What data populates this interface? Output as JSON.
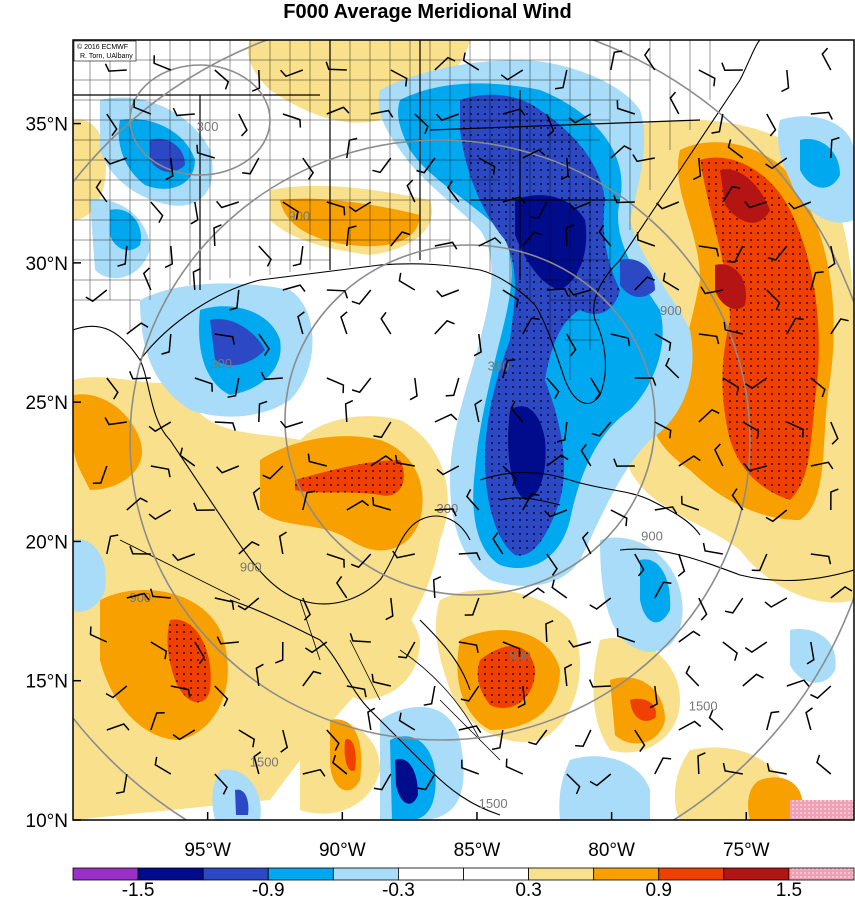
{
  "title": "F000 Average Meridional Wind",
  "credit_lines": [
    "© 2016 ECMWF",
    "R. Torn, UAlbany"
  ],
  "latitudes": [
    {
      "value": 35,
      "label": "35°N"
    },
    {
      "value": 30,
      "label": "30°N"
    },
    {
      "value": 25,
      "label": "25°N"
    },
    {
      "value": 20,
      "label": "20°N"
    },
    {
      "value": 15,
      "label": "15°N"
    },
    {
      "value": 10,
      "label": "10°N"
    }
  ],
  "longitudes": [
    {
      "value": -95,
      "label": "95°W"
    },
    {
      "value": -90,
      "label": "90°W"
    },
    {
      "value": -85,
      "label": "85°W"
    },
    {
      "value": -80,
      "label": "80°W"
    },
    {
      "value": -75,
      "label": "75°W"
    }
  ],
  "extent": {
    "lon_min": -100,
    "lon_max": -71,
    "lat_min": 10,
    "lat_max": 38
  },
  "contour_labels": [
    {
      "text": "300",
      "lon": -84.2,
      "lat": 26.2
    },
    {
      "text": "300",
      "lon": -86.1,
      "lat": 21.1
    },
    {
      "text": "300",
      "lon": -94.5,
      "lat": 26.3
    },
    {
      "text": "300",
      "lon": -95.0,
      "lat": 34.8
    },
    {
      "text": "900",
      "lon": -91.6,
      "lat": 31.6
    },
    {
      "text": "900",
      "lon": -77.8,
      "lat": 28.2
    },
    {
      "text": "900",
      "lon": -78.5,
      "lat": 20.1
    },
    {
      "text": "900",
      "lon": -93.4,
      "lat": 19.0
    },
    {
      "text": "900",
      "lon": -83.4,
      "lat": 15.8
    },
    {
      "text": "900",
      "lon": -97.5,
      "lat": 17.9
    },
    {
      "text": "1500",
      "lon": -76.6,
      "lat": 14.0
    },
    {
      "text": "1500",
      "lon": -92.9,
      "lat": 12.0
    },
    {
      "text": "1500",
      "lon": -84.4,
      "lat": 10.5
    }
  ],
  "colorbar": {
    "colors": [
      "#9b30c8",
      "#000c8c",
      "#2c48c4",
      "#00a8f0",
      "#a8dcf8",
      "#ffffff",
      "#ffffff",
      "#f8e08c",
      "#f8a000",
      "#f04000",
      "#b41414",
      "#f0a0b4"
    ],
    "labels": [
      "-1.5",
      "-0.9",
      "-0.3",
      "0.3",
      "0.9",
      "1.5"
    ]
  },
  "legend_levels": [
    -1.5,
    -1.2,
    -0.9,
    -0.6,
    -0.3,
    0.3,
    0.6,
    0.9,
    1.2,
    1.5
  ]
}
